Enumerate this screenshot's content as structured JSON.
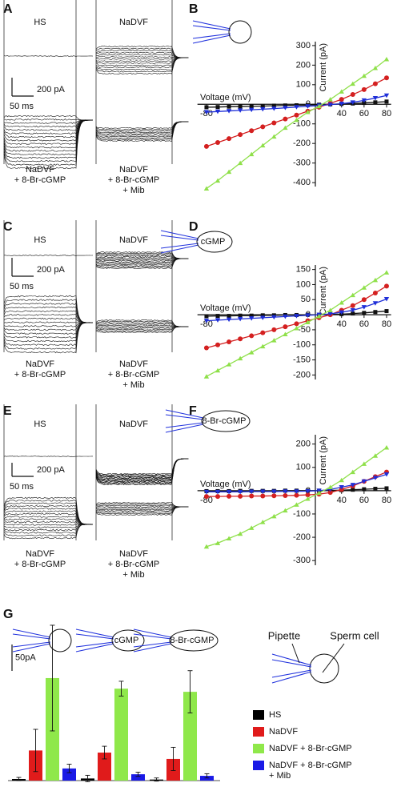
{
  "panels": {
    "letters": [
      "A",
      "B",
      "C",
      "D",
      "E",
      "F",
      "G"
    ]
  },
  "traces": [
    {
      "labels": [
        "HS",
        "NaDVF",
        "NaDVF\n+ 8-Br-cGMP",
        "NaDVF\n+ 8-Br-cGMP\n+ Mib"
      ],
      "scale_current": "200 pA",
      "scale_time": "50 ms"
    },
    {
      "labels": [
        "HS",
        "NaDVF",
        "NaDVF\n+ 8-Br-cGMP",
        "NaDVF\n+ 8-Br-cGMP\n+ Mib"
      ],
      "scale_current": "200 pA",
      "scale_time": "50 ms"
    },
    {
      "labels": [
        "HS",
        "NaDVF",
        "NaDVF\n+ 8-Br-cGMP",
        "NaDVF\n+ 8-Br-cGMP\n+ Mib"
      ],
      "scale_current": "200 pA",
      "scale_time": "50 ms"
    }
  ],
  "chart_data": [
    {
      "type": "line",
      "xlabel": "Voltage (mV)",
      "ylabel": "Current (pA)",
      "x": [
        -80,
        -70,
        -60,
        -50,
        -40,
        -30,
        -20,
        -10,
        0,
        10,
        20,
        30,
        40,
        50,
        60,
        70,
        80
      ],
      "xlim": [
        -88,
        84
      ],
      "xticks": [
        -80,
        40,
        60,
        80
      ],
      "ylim": [
        -420,
        320
      ],
      "yticks": [
        -400,
        -300,
        -200,
        -100,
        0,
        100,
        200,
        300
      ],
      "series": [
        {
          "color": "#111111",
          "marker": "square",
          "values": [
            -15,
            -14,
            -12,
            -11,
            -10,
            -9,
            -7,
            -6,
            -5,
            -4,
            -2,
            0,
            2,
            4,
            7,
            10,
            14
          ]
        },
        {
          "color": "#d42020",
          "marker": "circle",
          "values": [
            -215,
            -195,
            -175,
            -155,
            -135,
            -115,
            -95,
            -75,
            -55,
            -35,
            -15,
            5,
            25,
            50,
            75,
            105,
            135
          ]
        },
        {
          "color": "#1f2fd8",
          "marker": "triangle-down",
          "values": [
            -40,
            -37,
            -34,
            -31,
            -28,
            -25,
            -22,
            -18,
            -14,
            -10,
            -6,
            -2,
            3,
            10,
            20,
            32,
            45
          ]
        },
        {
          "color": "#8fe04a",
          "marker": "triangle-up",
          "values": [
            -430,
            -390,
            -345,
            -300,
            -255,
            -210,
            -165,
            -120,
            -80,
            -40,
            -10,
            25,
            65,
            105,
            145,
            185,
            230
          ]
        }
      ]
    },
    {
      "type": "line",
      "xlabel": "Voltage (mV)",
      "ylabel": "Current (pA)",
      "pipette_contents": "cGMP",
      "x": [
        -80,
        -70,
        -60,
        -50,
        -40,
        -30,
        -20,
        -10,
        0,
        10,
        20,
        30,
        40,
        50,
        60,
        70,
        80
      ],
      "xlim": [
        -88,
        84
      ],
      "xticks": [
        -80,
        40,
        60,
        80
      ],
      "ylim": [
        -215,
        165
      ],
      "yticks": [
        -200,
        -150,
        -100,
        -50,
        0,
        50,
        100,
        150
      ],
      "series": [
        {
          "color": "#111111",
          "marker": "square",
          "values": [
            -5,
            -4,
            -4,
            -3,
            -3,
            -2,
            -2,
            -1,
            -1,
            0,
            0,
            1,
            2,
            4,
            6,
            9,
            12
          ]
        },
        {
          "color": "#d42020",
          "marker": "circle",
          "values": [
            -110,
            -100,
            -90,
            -80,
            -70,
            -60,
            -50,
            -40,
            -30,
            -20,
            -10,
            0,
            15,
            30,
            50,
            72,
            95
          ]
        },
        {
          "color": "#1f2fd8",
          "marker": "triangle-down",
          "values": [
            -20,
            -18,
            -16,
            -14,
            -12,
            -10,
            -8,
            -6,
            -4,
            -2,
            0,
            3,
            8,
            15,
            25,
            38,
            52
          ]
        },
        {
          "color": "#8fe04a",
          "marker": "triangle-up",
          "values": [
            -205,
            -185,
            -165,
            -145,
            -125,
            -105,
            -85,
            -65,
            -45,
            -25,
            -5,
            15,
            40,
            65,
            90,
            115,
            140
          ]
        }
      ]
    },
    {
      "type": "line",
      "xlabel": "Voltage (mV)",
      "ylabel": "Current (pA)",
      "pipette_contents": "8-Br-cGMP",
      "x": [
        -80,
        -70,
        -60,
        -50,
        -40,
        -30,
        -20,
        -10,
        0,
        10,
        20,
        30,
        40,
        50,
        60,
        70,
        80
      ],
      "xlim": [
        -88,
        84
      ],
      "xticks": [
        -80,
        40,
        60,
        80
      ],
      "ylim": [
        -320,
        240
      ],
      "yticks": [
        -300,
        -200,
        -100,
        0,
        100,
        200
      ],
      "series": [
        {
          "color": "#111111",
          "marker": "square",
          "values": [
            -2,
            -2,
            -2,
            -1,
            -1,
            -1,
            -1,
            0,
            0,
            0,
            0,
            1,
            2,
            4,
            6,
            8,
            10
          ]
        },
        {
          "color": "#d42020",
          "marker": "circle",
          "values": [
            -25,
            -25,
            -24,
            -24,
            -23,
            -23,
            -22,
            -21,
            -20,
            -18,
            -15,
            -8,
            5,
            20,
            40,
            60,
            80
          ]
        },
        {
          "color": "#1f2fd8",
          "marker": "triangle-down",
          "values": [
            -5,
            -5,
            -5,
            -5,
            -4,
            -4,
            -4,
            -3,
            -3,
            -2,
            0,
            5,
            15,
            25,
            40,
            55,
            70
          ]
        },
        {
          "color": "#8fe04a",
          "marker": "triangle-up",
          "values": [
            -240,
            -225,
            -205,
            -185,
            -160,
            -135,
            -110,
            -85,
            -60,
            -35,
            -10,
            15,
            45,
            80,
            115,
            150,
            185
          ]
        }
      ]
    },
    {
      "type": "bar",
      "categories": [
        null,
        "cGMP",
        "8-Br-cGMP"
      ],
      "scale_bar": {
        "value": 50,
        "label": "50pA"
      },
      "series": [
        {
          "name": "HS",
          "color": "#000000",
          "values": [
            3,
            4,
            2
          ],
          "errors": [
            3,
            6,
            3
          ]
        },
        {
          "name": "NaDVF",
          "color": "#e01b1b",
          "values": [
            57,
            53,
            41
          ],
          "errors": [
            40,
            12,
            22
          ]
        },
        {
          "name": "NaDVF + 8-Br-cGMP",
          "color": "#8fe84a",
          "values": [
            194,
            174,
            168
          ],
          "errors": [
            100,
            14,
            40
          ]
        },
        {
          "name": "NaDVF + 8-Br-cGMP\n+ Mib",
          "color": "#1a1ae6",
          "values": [
            23,
            12,
            9
          ],
          "errors": [
            8,
            4,
            4
          ]
        }
      ]
    }
  ],
  "schematic": {
    "pipette": "Pipette",
    "cell": "Sperm cell"
  }
}
